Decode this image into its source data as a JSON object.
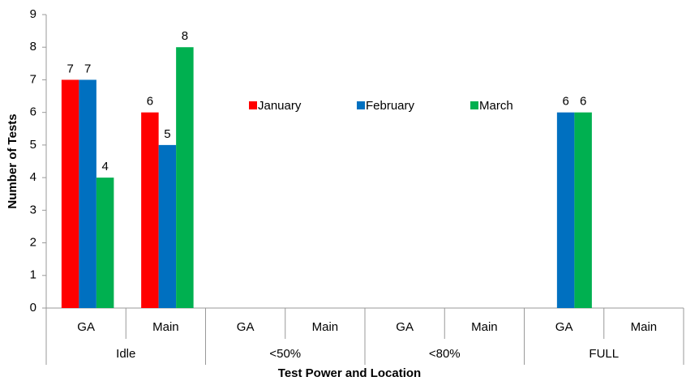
{
  "chart_data": {
    "type": "bar",
    "categories": [
      "GA",
      "Main",
      "GA",
      "Main",
      "GA",
      "Main",
      "GA",
      "Main"
    ],
    "group_labels": [
      "Idle",
      "<50%",
      "<80%",
      "FULL"
    ],
    "series": [
      {
        "name": "January",
        "color": "#ff0000",
        "values": [
          7,
          6,
          null,
          null,
          null,
          null,
          null,
          null
        ]
      },
      {
        "name": "February",
        "color": "#0070c0",
        "values": [
          7,
          5,
          null,
          null,
          null,
          null,
          6,
          null
        ]
      },
      {
        "name": "March",
        "color": "#00b050",
        "values": [
          4,
          8,
          null,
          null,
          null,
          null,
          6,
          null
        ]
      }
    ],
    "xlabel": "Test Power and Location",
    "ylabel": "Number of Tests",
    "ylim": [
      0,
      9
    ],
    "yticks": [
      0,
      1,
      2,
      3,
      4,
      5,
      6,
      7,
      8,
      9
    ],
    "grid": false,
    "legend": "inside-top"
  }
}
